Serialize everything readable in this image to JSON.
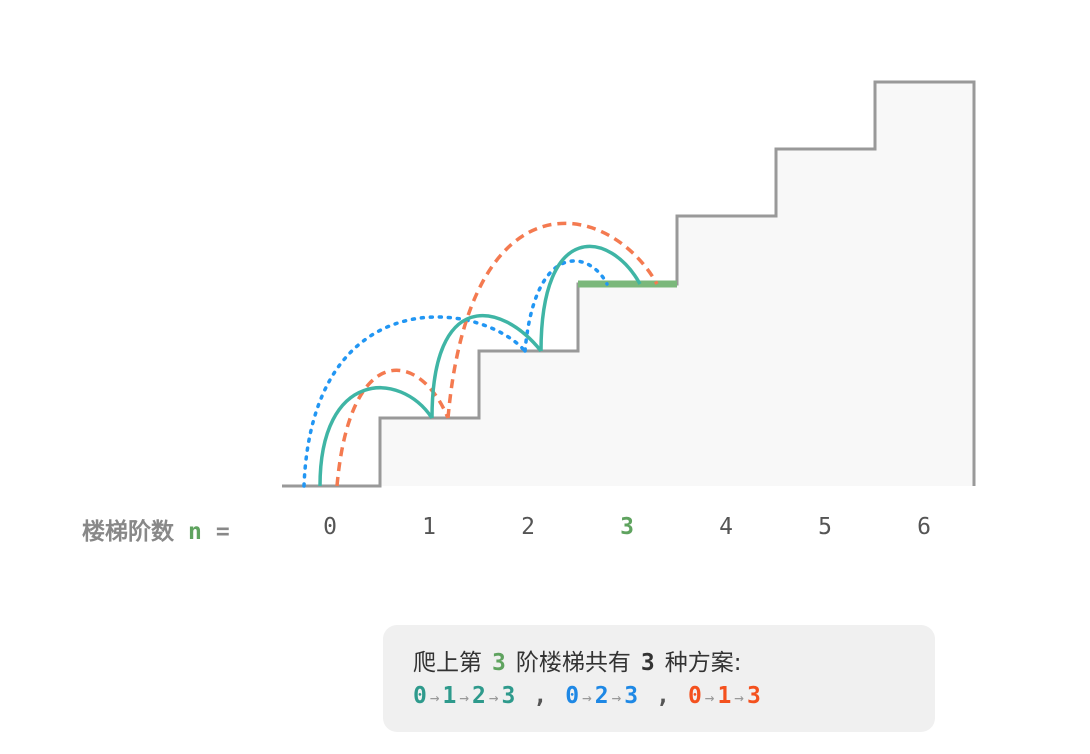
{
  "axis_label": {
    "text": "楼梯阶数",
    "variable": "n",
    "equals": "="
  },
  "steps": [
    "0",
    "1",
    "2",
    "3",
    "4",
    "5",
    "6"
  ],
  "summary": {
    "parts": [
      "爬上第",
      "3",
      "阶楼梯共有",
      "3",
      "种方案:"
    ]
  },
  "paths": [
    {
      "nodes": [
        "0",
        "1",
        "2",
        "3"
      ],
      "color": "#2e9a8c"
    },
    {
      "nodes": [
        "0",
        "2",
        "3"
      ],
      "color": "#1e88e5"
    },
    {
      "nodes": [
        "0",
        "1",
        "3"
      ],
      "color": "#f4511e"
    }
  ],
  "arrow": "→",
  "separator": ","
}
